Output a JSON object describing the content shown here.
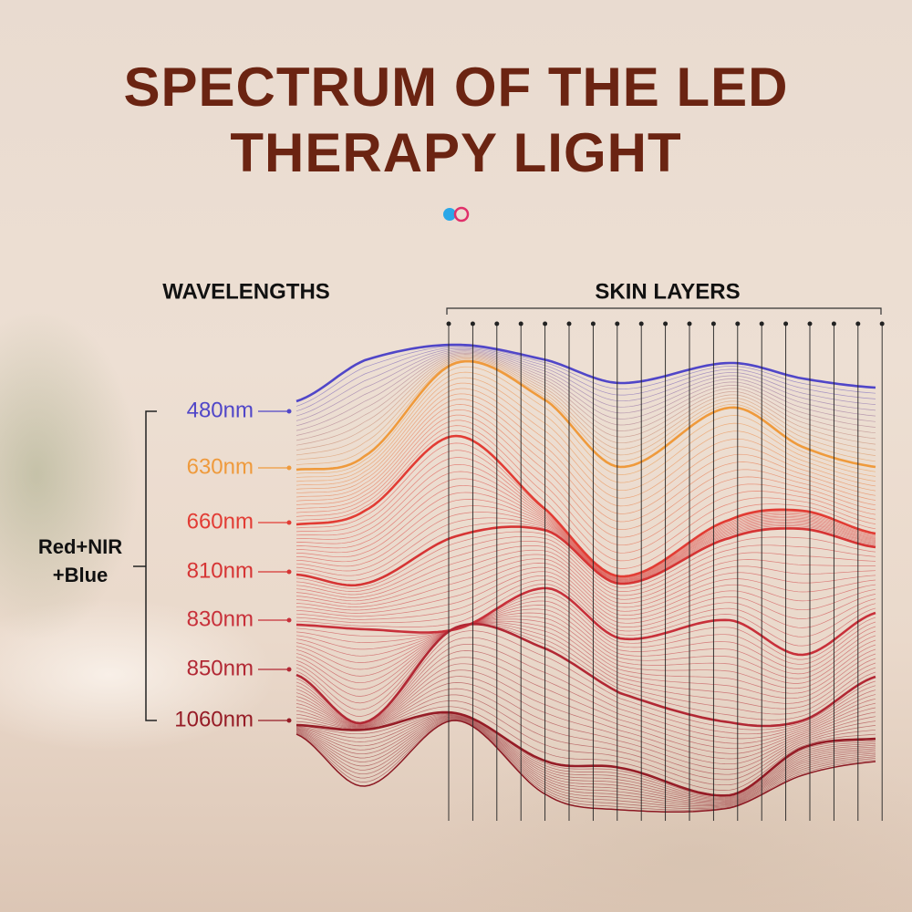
{
  "header": {
    "title_lines": [
      "SPECTRUM OF THE LED",
      "THERAPY LIGHT"
    ]
  },
  "wavelengths_heading": "WAVELENGTHS",
  "skin_layers_heading": "SKIN LAYERS",
  "group_label_lines": [
    "Red+NIR",
    "+Blue"
  ],
  "wavelengths": [
    "480nm",
    "630nm",
    "660nm",
    "810nm",
    "830nm",
    "850nm",
    "1060nm"
  ]
}
